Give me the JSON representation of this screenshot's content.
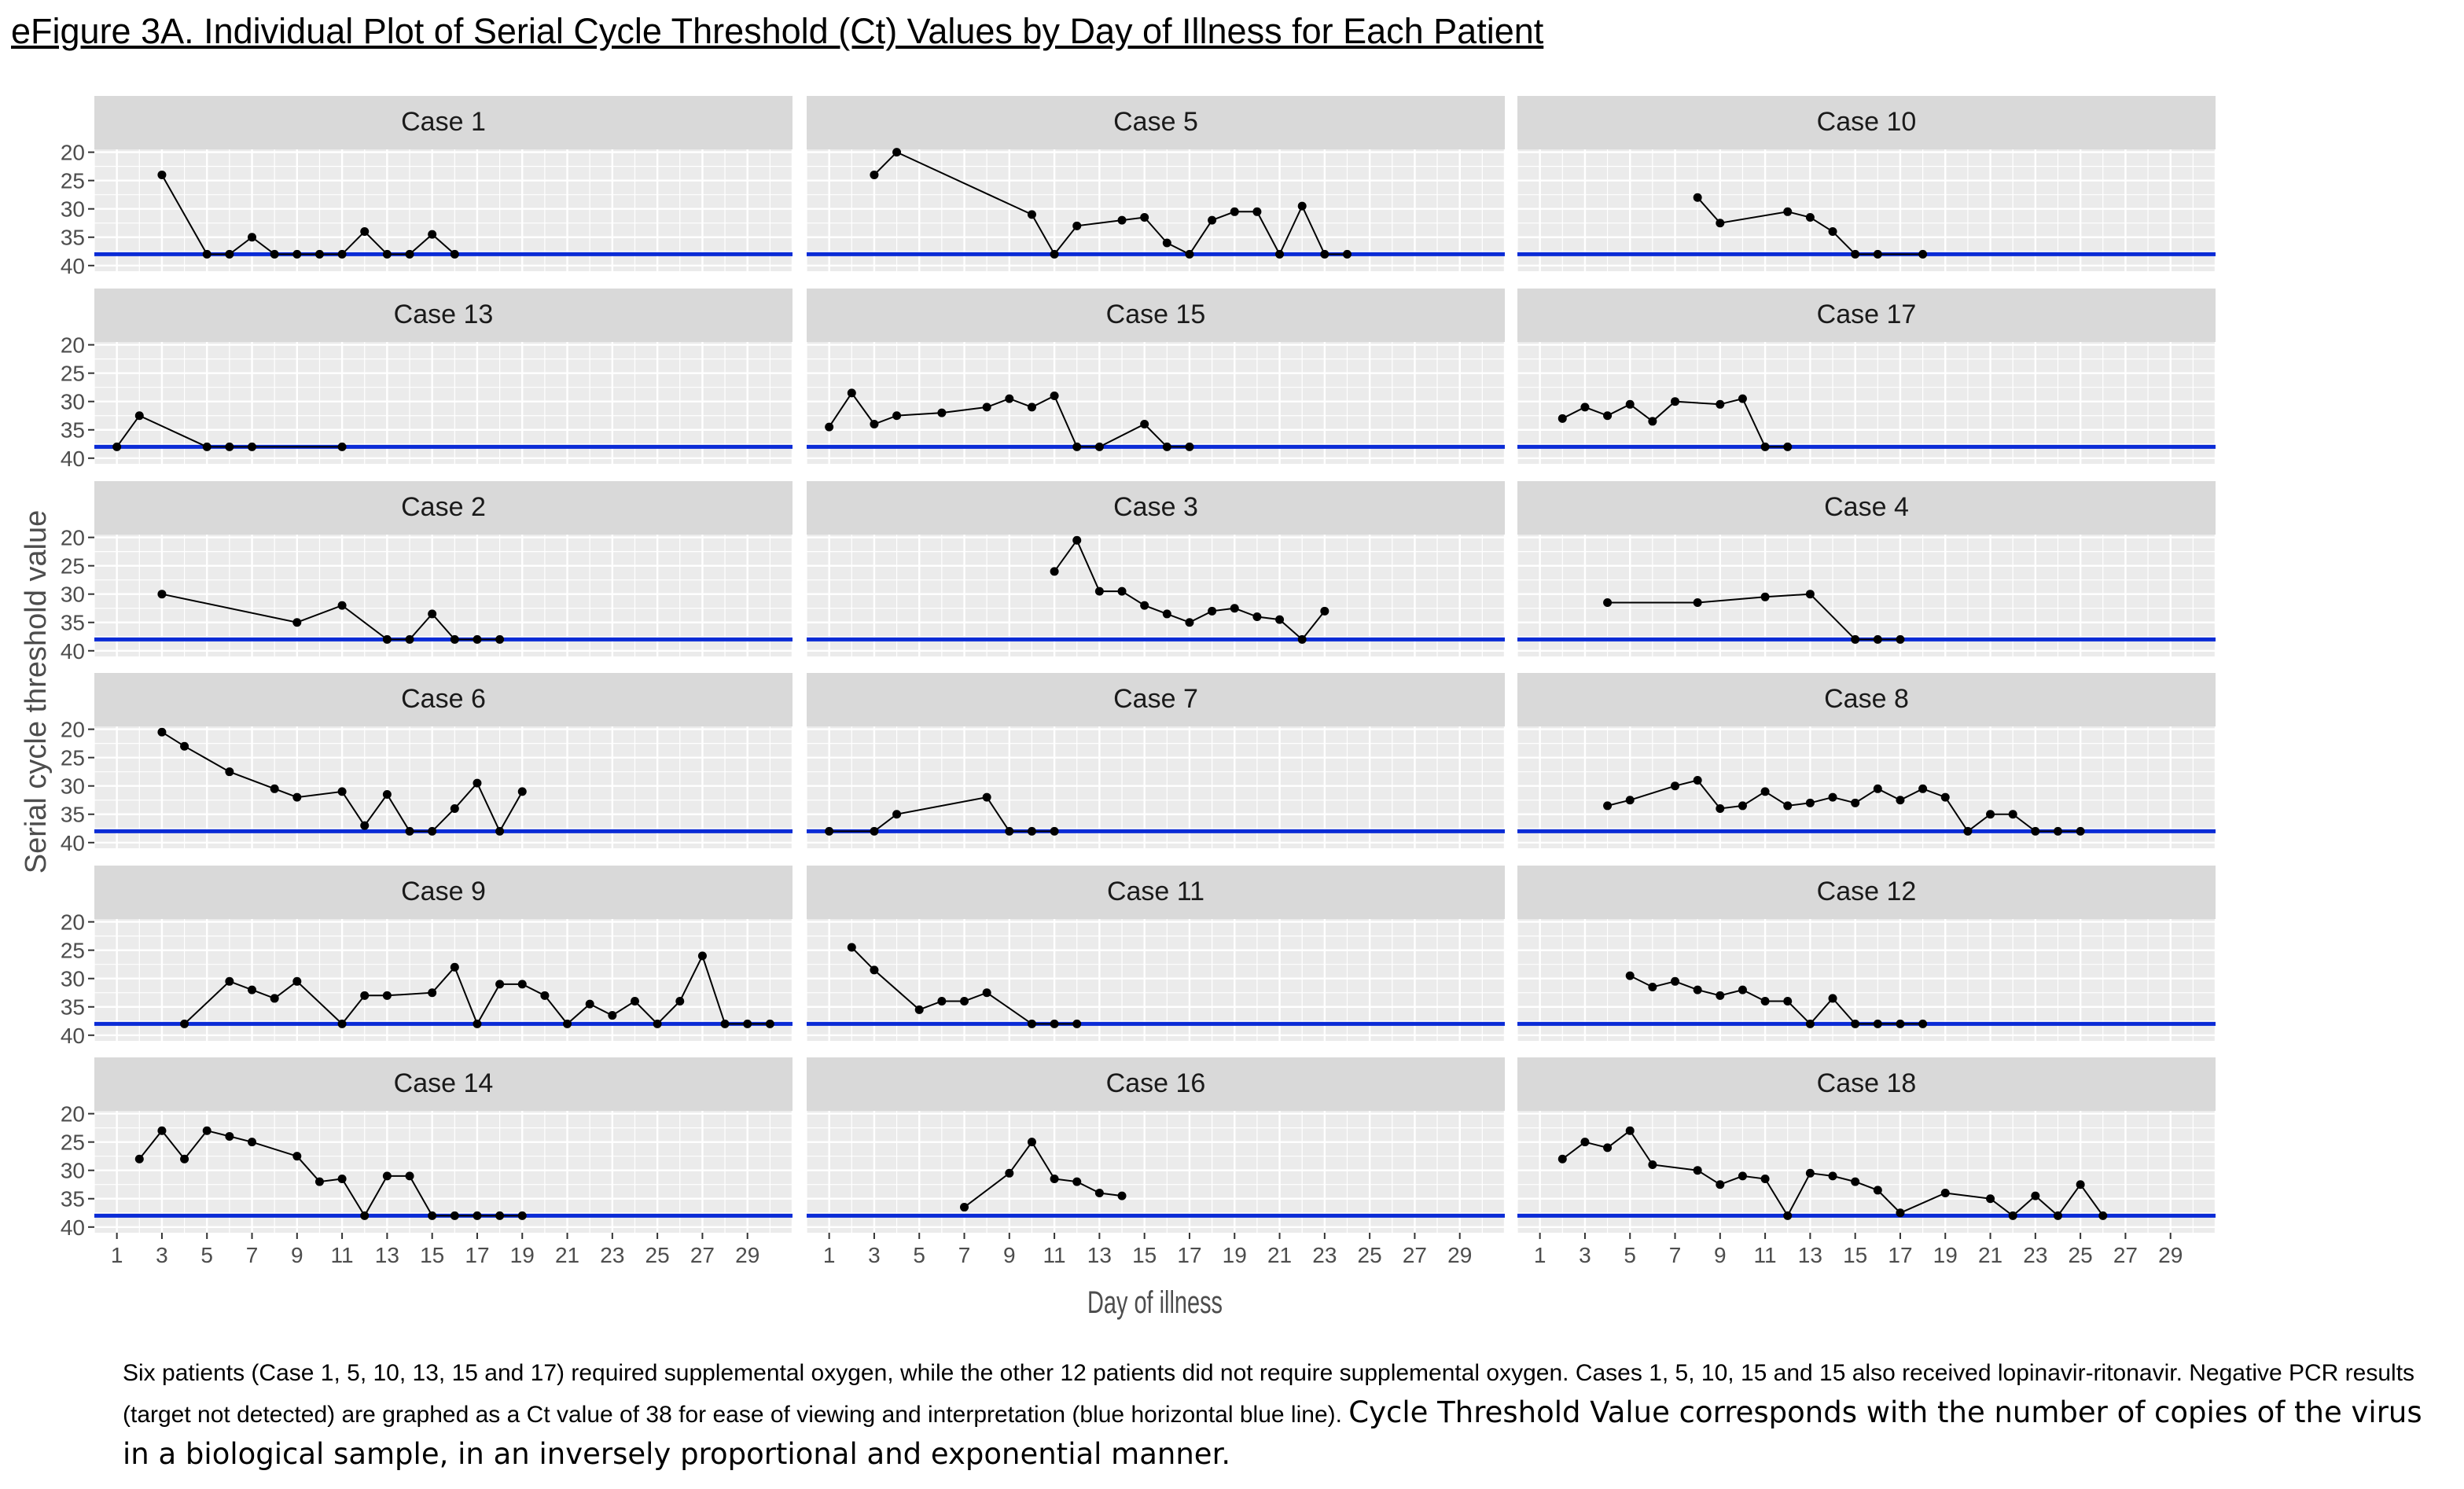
{
  "title": "eFigure 3A. Individual Plot of Serial Cycle Threshold (Ct) Values by Day of Illness for Each Patient",
  "caption": {
    "part1": "Six patients (Case 1, 5, 10, 13, 15 and 17) required supplemental oxygen, while the other 12 patients did not require supplemental oxygen. Cases 1, 5, 10, 15 and 15 also received lopinavir-ritonavir. Negative PCR results (target not detected) are graphed as a Ct value of 38 for ease of viewing and interpretation (blue horizontal blue line).",
    "part2": "Cycle Threshold Value corresponds with the number of copies of the virus in a biological sample, in an inversely proportional and exponential manner."
  },
  "colors": {
    "panel_bg": "#ebebeb",
    "strip_bg": "#d9d9d9",
    "grid": "#ffffff",
    "reference_line": "#0a2bd6",
    "series": "#000000"
  },
  "chart_data": {
    "type": "line",
    "layout": "facet grid, 6 rows x 3 columns, shared axes",
    "xlabel": "Day of illness",
    "ylabel": "Serial cycle threshold value",
    "xlim": [
      0,
      31
    ],
    "ylim": [
      19.5,
      41
    ],
    "y_reversed": true,
    "x_ticks": [
      1,
      3,
      5,
      7,
      9,
      11,
      13,
      15,
      17,
      19,
      21,
      23,
      25,
      27,
      29
    ],
    "y_ticks": [
      20,
      25,
      30,
      35,
      40
    ],
    "grid": true,
    "reference_line": {
      "y": 38,
      "label": ""
    },
    "panels": [
      {
        "title": "Case 1",
        "points": [
          [
            3,
            24
          ],
          [
            5,
            38
          ],
          [
            6,
            38
          ],
          [
            7,
            35
          ],
          [
            8,
            38
          ],
          [
            9,
            38
          ],
          [
            10,
            38
          ],
          [
            11,
            38
          ],
          [
            12,
            34
          ],
          [
            13,
            38
          ],
          [
            14,
            38
          ],
          [
            15,
            34.5
          ],
          [
            16,
            38
          ]
        ]
      },
      {
        "title": "Case 5",
        "points": [
          [
            3,
            24
          ],
          [
            4,
            20
          ],
          [
            10,
            31
          ],
          [
            11,
            38
          ],
          [
            12,
            33
          ],
          [
            14,
            32
          ],
          [
            15,
            31.5
          ],
          [
            16,
            36
          ],
          [
            17,
            38
          ],
          [
            18,
            32
          ],
          [
            19,
            30.5
          ],
          [
            20,
            30.5
          ],
          [
            21,
            38
          ],
          [
            22,
            29.5
          ],
          [
            23,
            38
          ],
          [
            24,
            38
          ]
        ]
      },
      {
        "title": "Case 10",
        "points": [
          [
            8,
            28
          ],
          [
            9,
            32.5
          ],
          [
            12,
            30.5
          ],
          [
            13,
            31.5
          ],
          [
            14,
            34
          ],
          [
            15,
            38
          ],
          [
            16,
            38
          ],
          [
            18,
            38
          ]
        ]
      },
      {
        "title": "Case 13",
        "points": [
          [
            1,
            38
          ],
          [
            2,
            32.5
          ],
          [
            5,
            38
          ],
          [
            6,
            38
          ],
          [
            7,
            38
          ],
          [
            11,
            38
          ]
        ]
      },
      {
        "title": "Case 15",
        "points": [
          [
            1,
            34.5
          ],
          [
            2,
            28.5
          ],
          [
            3,
            34
          ],
          [
            4,
            32.5
          ],
          [
            6,
            32
          ],
          [
            8,
            31
          ],
          [
            9,
            29.5
          ],
          [
            10,
            31
          ],
          [
            11,
            29
          ],
          [
            12,
            38
          ],
          [
            13,
            38
          ],
          [
            15,
            34
          ],
          [
            16,
            38
          ],
          [
            17,
            38
          ]
        ]
      },
      {
        "title": "Case 17",
        "points": [
          [
            2,
            33
          ],
          [
            3,
            31
          ],
          [
            4,
            32.5
          ],
          [
            5,
            30.5
          ],
          [
            6,
            33.5
          ],
          [
            7,
            30
          ],
          [
            9,
            30.5
          ],
          [
            10,
            29.5
          ],
          [
            11,
            38
          ],
          [
            12,
            38
          ]
        ]
      },
      {
        "title": "Case 2",
        "points": [
          [
            3,
            30
          ],
          [
            9,
            35
          ],
          [
            11,
            32
          ],
          [
            13,
            38
          ],
          [
            14,
            38
          ],
          [
            15,
            33.5
          ],
          [
            16,
            38
          ],
          [
            17,
            38
          ],
          [
            18,
            38
          ]
        ]
      },
      {
        "title": "Case 3",
        "points": [
          [
            11,
            26
          ],
          [
            12,
            20.5
          ],
          [
            13,
            29.5
          ],
          [
            14,
            29.5
          ],
          [
            15,
            32
          ],
          [
            16,
            33.5
          ],
          [
            17,
            35
          ],
          [
            18,
            33
          ],
          [
            19,
            32.5
          ],
          [
            20,
            34
          ],
          [
            21,
            34.5
          ],
          [
            22,
            38
          ],
          [
            23,
            33
          ]
        ]
      },
      {
        "title": "Case 4",
        "points": [
          [
            4,
            31.5
          ],
          [
            8,
            31.5
          ],
          [
            11,
            30.5
          ],
          [
            13,
            30
          ],
          [
            15,
            38
          ],
          [
            16,
            38
          ],
          [
            17,
            38
          ]
        ]
      },
      {
        "title": "Case 6",
        "points": [
          [
            3,
            20.5
          ],
          [
            4,
            23
          ],
          [
            6,
            27.5
          ],
          [
            8,
            30.5
          ],
          [
            9,
            32
          ],
          [
            11,
            31
          ],
          [
            12,
            37
          ],
          [
            13,
            31.5
          ],
          [
            14,
            38
          ],
          [
            15,
            38
          ],
          [
            16,
            34
          ],
          [
            17,
            29.5
          ],
          [
            18,
            38
          ],
          [
            19,
            31
          ]
        ]
      },
      {
        "title": "Case 7",
        "points": [
          [
            1,
            38
          ],
          [
            3,
            38
          ],
          [
            4,
            35
          ],
          [
            8,
            32
          ],
          [
            9,
            38
          ],
          [
            10,
            38
          ],
          [
            11,
            38
          ]
        ]
      },
      {
        "title": "Case 8",
        "points": [
          [
            4,
            33.5
          ],
          [
            5,
            32.5
          ],
          [
            7,
            30
          ],
          [
            8,
            29
          ],
          [
            9,
            34
          ],
          [
            10,
            33.5
          ],
          [
            11,
            31
          ],
          [
            12,
            33.5
          ],
          [
            13,
            33
          ],
          [
            14,
            32
          ],
          [
            15,
            33
          ],
          [
            16,
            30.5
          ],
          [
            17,
            32.5
          ],
          [
            18,
            30.5
          ],
          [
            19,
            32
          ],
          [
            20,
            38
          ],
          [
            21,
            35
          ],
          [
            22,
            35
          ],
          [
            23,
            38
          ],
          [
            24,
            38
          ],
          [
            25,
            38
          ]
        ]
      },
      {
        "title": "Case 9",
        "points": [
          [
            4,
            38
          ],
          [
            6,
            30.5
          ],
          [
            7,
            32
          ],
          [
            8,
            33.5
          ],
          [
            9,
            30.5
          ],
          [
            11,
            38
          ],
          [
            12,
            33
          ],
          [
            13,
            33
          ],
          [
            15,
            32.5
          ],
          [
            16,
            28
          ],
          [
            17,
            38
          ],
          [
            18,
            31
          ],
          [
            19,
            31
          ],
          [
            20,
            33
          ],
          [
            21,
            38
          ],
          [
            22,
            34.5
          ],
          [
            23,
            36.5
          ],
          [
            24,
            34
          ],
          [
            25,
            38
          ],
          [
            26,
            34
          ],
          [
            27,
            26
          ],
          [
            28,
            38
          ],
          [
            29,
            38
          ],
          [
            30,
            38
          ]
        ]
      },
      {
        "title": "Case 11",
        "points": [
          [
            2,
            24.5
          ],
          [
            3,
            28.5
          ],
          [
            5,
            35.5
          ],
          [
            6,
            34
          ],
          [
            7,
            34
          ],
          [
            8,
            32.5
          ],
          [
            10,
            38
          ],
          [
            11,
            38
          ],
          [
            12,
            38
          ]
        ]
      },
      {
        "title": "Case 12",
        "points": [
          [
            5,
            29.5
          ],
          [
            6,
            31.5
          ],
          [
            7,
            30.5
          ],
          [
            8,
            32
          ],
          [
            9,
            33
          ],
          [
            10,
            32
          ],
          [
            11,
            34
          ],
          [
            12,
            34
          ],
          [
            13,
            38
          ],
          [
            14,
            33.5
          ],
          [
            15,
            38
          ],
          [
            16,
            38
          ],
          [
            17,
            38
          ],
          [
            18,
            38
          ]
        ]
      },
      {
        "title": "Case 14",
        "points": [
          [
            2,
            28
          ],
          [
            3,
            23
          ],
          [
            4,
            28
          ],
          [
            5,
            23
          ],
          [
            6,
            24
          ],
          [
            7,
            25
          ],
          [
            9,
            27.5
          ],
          [
            10,
            32
          ],
          [
            11,
            31.5
          ],
          [
            12,
            38
          ],
          [
            13,
            31
          ],
          [
            14,
            31
          ],
          [
            15,
            38
          ],
          [
            16,
            38
          ],
          [
            17,
            38
          ],
          [
            18,
            38
          ],
          [
            19,
            38
          ]
        ]
      },
      {
        "title": "Case 16",
        "points": [
          [
            7,
            36.5
          ],
          [
            9,
            30.5
          ],
          [
            10,
            25
          ],
          [
            11,
            31.5
          ],
          [
            12,
            32
          ],
          [
            13,
            34
          ],
          [
            14,
            34.5
          ]
        ]
      },
      {
        "title": "Case 18",
        "points": [
          [
            2,
            28
          ],
          [
            3,
            25
          ],
          [
            4,
            26
          ],
          [
            5,
            23
          ],
          [
            6,
            29
          ],
          [
            8,
            30
          ],
          [
            9,
            32.5
          ],
          [
            10,
            31
          ],
          [
            11,
            31.5
          ],
          [
            12,
            38
          ],
          [
            13,
            30.5
          ],
          [
            14,
            31
          ],
          [
            15,
            32
          ],
          [
            16,
            33.5
          ],
          [
            17,
            37.5
          ],
          [
            19,
            34
          ],
          [
            21,
            35
          ],
          [
            22,
            38
          ],
          [
            23,
            34.5
          ],
          [
            24,
            38
          ],
          [
            25,
            32.5
          ],
          [
            26,
            38
          ]
        ]
      }
    ]
  }
}
